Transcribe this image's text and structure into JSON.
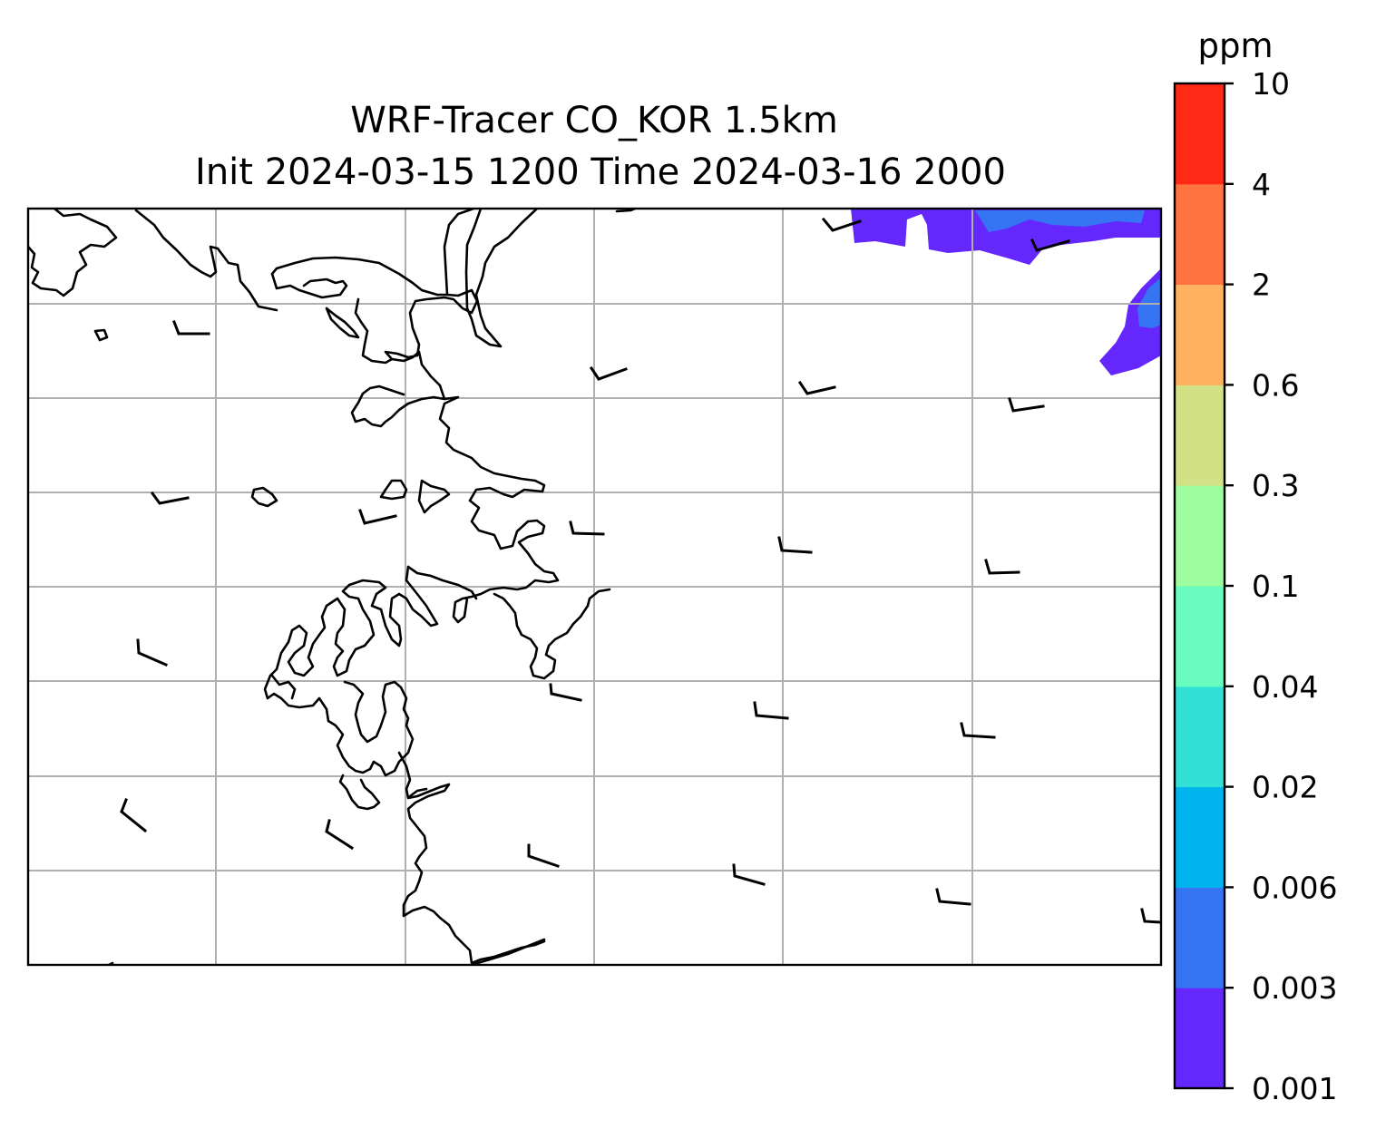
{
  "title": {
    "line1": "WRF-Tracer CO_KOR 1.5km",
    "line2": "Init 2024-03-15 1200 Time 2024-03-16 2000"
  },
  "colorbar": {
    "unit": "ppm",
    "levels": [
      "0.001",
      "0.003",
      "0.006",
      "0.02",
      "0.04",
      "0.1",
      "0.3",
      "0.6",
      "2",
      "4",
      "10"
    ],
    "colors": [
      "#6428fc",
      "#3575f4",
      "#00b4ed",
      "#32e0d6",
      "#69fcbf",
      "#9efe9f",
      "#d2e186",
      "#ffb360",
      "#ff7340",
      "#ff2a16"
    ]
  },
  "map": {
    "gridlines": true,
    "coastline_color": "#000000",
    "gridline_color": "#b0b0b0"
  }
}
